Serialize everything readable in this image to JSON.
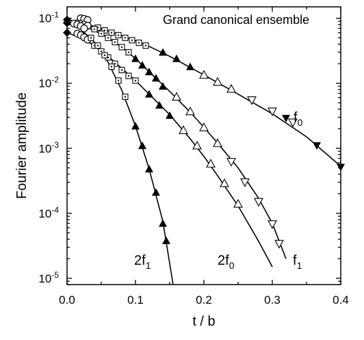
{
  "chart_data": {
    "type": "scatter",
    "annotation": "Grand canonical ensemble",
    "xlabel": "t / b",
    "ylabel": "Fourier amplitude",
    "xlim": [
      0.0,
      0.4
    ],
    "ylim": [
      8e-06,
      0.15
    ],
    "yscale": "log",
    "x_ticks": [
      {
        "value": 0.0,
        "label": "0.0"
      },
      {
        "value": 0.1,
        "label": "0.1"
      },
      {
        "value": 0.2,
        "label": "0.2"
      },
      {
        "value": 0.3,
        "label": "0.3"
      },
      {
        "value": 0.4,
        "label": "0.4"
      }
    ],
    "y_ticks": [
      {
        "value": 0.1,
        "base": "10",
        "exp": "-1"
      },
      {
        "value": 0.01,
        "base": "10",
        "exp": "-2"
      },
      {
        "value": 0.001,
        "base": "10",
        "exp": "-3"
      },
      {
        "value": 0.0001,
        "base": "10",
        "exp": "-4"
      },
      {
        "value": 1e-05,
        "base": "10",
        "exp": "-5"
      }
    ],
    "curve_labels": [
      {
        "id": "f0",
        "base": "f",
        "sub": "0"
      },
      {
        "id": "f1",
        "base": "f",
        "sub": "1"
      },
      {
        "id": "2f0",
        "base": "2f",
        "sub": "0"
      },
      {
        "id": "2f1",
        "base": "2f",
        "sub": "1"
      }
    ],
    "series": [
      {
        "id": "f0",
        "theory": {
          "x": [
            0.0,
            0.02,
            0.04,
            0.06,
            0.08,
            0.1,
            0.12,
            0.15,
            0.2,
            0.25,
            0.3,
            0.35,
            0.4
          ],
          "y": [
            0.095,
            0.085,
            0.075,
            0.064,
            0.054,
            0.045,
            0.037,
            0.026,
            0.0135,
            0.0068,
            0.0034,
            0.0015,
            0.00053
          ]
        },
        "points": [
          {
            "marker": "diamond",
            "x": [
              0.0
            ],
            "y": [
              0.095
            ]
          },
          {
            "marker": "circle",
            "x": [
              0.02,
              0.025,
              0.03
            ],
            "y": [
              0.1,
              0.098,
              0.094
            ]
          },
          {
            "marker": "dotted-square",
            "x": [
              0.045,
              0.055,
              0.065,
              0.075,
              0.085,
              0.095,
              0.105,
              0.115
            ],
            "y": [
              0.072,
              0.065,
              0.06,
              0.055,
              0.05,
              0.046,
              0.042,
              0.038
            ]
          },
          {
            "marker": "filled-triangle",
            "x": [
              0.14,
              0.16,
              0.18
            ],
            "y": [
              0.03,
              0.024,
              0.018
            ]
          },
          {
            "marker": "open-triangle-up",
            "x": [
              0.2,
              0.22,
              0.24
            ],
            "y": [
              0.0135,
              0.0105,
              0.0082
            ]
          },
          {
            "marker": "open-triangle-down",
            "x": [
              0.27,
              0.3,
              0.33
            ],
            "y": [
              0.0055,
              0.0037,
              0.0025
            ]
          },
          {
            "marker": "filled-triangle-down",
            "x": [
              0.32,
              0.365,
              0.4
            ],
            "y": [
              0.0029,
              0.0011,
              0.00051
            ]
          }
        ]
      },
      {
        "id": "f1",
        "theory": {
          "x": [
            0.0,
            0.02,
            0.04,
            0.06,
            0.08,
            0.1,
            0.12,
            0.15,
            0.18,
            0.2,
            0.22,
            0.25,
            0.28,
            0.3,
            0.32
          ],
          "y": [
            0.085,
            0.078,
            0.065,
            0.05,
            0.036,
            0.024,
            0.015,
            0.0075,
            0.0036,
            0.0021,
            0.0012,
            0.0005,
            0.00017,
            7e-05,
            2e-05
          ]
        },
        "points": [
          {
            "marker": "diamond",
            "x": [
              0.0
            ],
            "y": [
              0.085
            ]
          },
          {
            "marker": "circle",
            "x": [
              0.015,
              0.02,
              0.025,
              0.03
            ],
            "y": [
              0.084,
              0.082,
              0.08,
              0.077
            ]
          },
          {
            "marker": "dotted-square",
            "x": [
              0.04,
              0.05,
              0.06,
              0.07,
              0.08,
              0.09
            ],
            "y": [
              0.068,
              0.058,
              0.05,
              0.043,
              0.036,
              0.03
            ]
          },
          {
            "marker": "filled-triangle",
            "x": [
              0.1,
              0.11,
              0.12,
              0.13,
              0.14
            ],
            "y": [
              0.024,
              0.019,
              0.015,
              0.012,
              0.009
            ]
          },
          {
            "marker": "open-triangle-up",
            "x": [
              0.16,
              0.18,
              0.2,
              0.22
            ],
            "y": [
              0.0062,
              0.0037,
              0.0021,
              0.0012
            ]
          },
          {
            "marker": "open-triangle-down",
            "x": [
              0.24,
              0.26,
              0.28,
              0.3,
              0.31
            ],
            "y": [
              0.00062,
              0.0003,
              0.00015,
              6.8e-05,
              3.4e-05
            ]
          }
        ]
      },
      {
        "id": "2f0",
        "theory": {
          "x": [
            0.0,
            0.02,
            0.04,
            0.06,
            0.08,
            0.1,
            0.12,
            0.15,
            0.18,
            0.2,
            0.22,
            0.25,
            0.28,
            0.3
          ],
          "y": [
            0.06,
            0.05,
            0.038,
            0.026,
            0.017,
            0.011,
            0.0068,
            0.0033,
            0.0014,
            0.00075,
            0.00038,
            0.00013,
            3.7e-05,
            1.5e-05
          ]
        },
        "points": [
          {
            "marker": "diamond",
            "x": [
              0.0
            ],
            "y": [
              0.06
            ]
          },
          {
            "marker": "circle",
            "x": [
              0.015,
              0.02,
              0.025,
              0.03
            ],
            "y": [
              0.058,
              0.055,
              0.051,
              0.047
            ]
          },
          {
            "marker": "dotted-square",
            "x": [
              0.04,
              0.05,
              0.06,
              0.07,
              0.08,
              0.09,
              0.1
            ],
            "y": [
              0.038,
              0.031,
              0.025,
              0.02,
              0.016,
              0.013,
              0.011
            ]
          },
          {
            "marker": "filled-triangle",
            "x": [
              0.12,
              0.135,
              0.15
            ],
            "y": [
              0.0068,
              0.0046,
              0.0032
            ]
          },
          {
            "marker": "open-triangle-up",
            "x": [
              0.17,
              0.19,
              0.21,
              0.23,
              0.25
            ],
            "y": [
              0.0019,
              0.0011,
              0.00058,
              0.00029,
              0.00014
            ]
          }
        ]
      },
      {
        "id": "2f1",
        "theory": {
          "x": [
            0.0,
            0.02,
            0.04,
            0.06,
            0.08,
            0.1,
            0.12,
            0.14,
            0.155
          ],
          "y": [
            0.085,
            0.068,
            0.043,
            0.021,
            0.0078,
            0.0022,
            0.00048,
            7.5e-05,
            8e-06
          ]
        },
        "points": [
          {
            "marker": "diamond",
            "x": [
              0.0
            ],
            "y": [
              0.085
            ]
          },
          {
            "marker": "circle",
            "x": [
              0.01,
              0.015,
              0.02,
              0.025
            ],
            "y": [
              0.083,
              0.08,
              0.076,
              0.07
            ]
          },
          {
            "marker": "dotted-square",
            "x": [
              0.035,
              0.045,
              0.055,
              0.065,
              0.075,
              0.085
            ],
            "y": [
              0.05,
              0.038,
              0.027,
              0.018,
              0.011,
              0.0062
            ]
          },
          {
            "marker": "filled-triangle",
            "x": [
              0.1,
              0.11,
              0.12,
              0.13,
              0.14,
              0.145
            ],
            "y": [
              0.0022,
              0.0011,
              0.00048,
              0.00021,
              7e-05,
              3.8e-05
            ]
          }
        ]
      }
    ]
  }
}
